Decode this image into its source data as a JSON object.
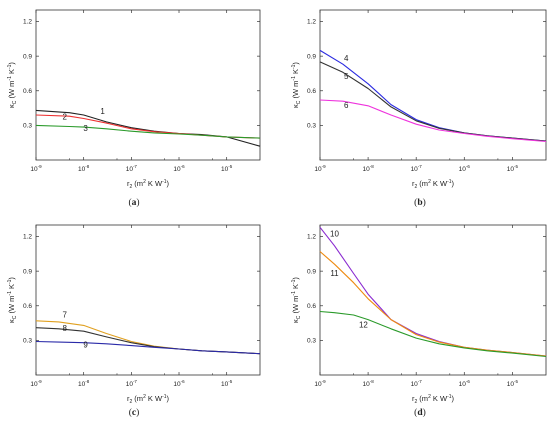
{
  "chart_data": [
    {
      "panel_label": "(a)",
      "type": "line",
      "xscale": "log",
      "xlim": [
        1e-09,
        5e-05
      ],
      "ylim": [
        0,
        1.3
      ],
      "xlabel": {
        "base": "r",
        "sub": "2",
        "units": " (m",
        "sup1": "2",
        "mid": " K W",
        "sup2": "-1",
        "end": ")"
      },
      "ylabel": {
        "base": "κ",
        "sub": "C",
        "units": " (W m",
        "sup1": "-1",
        "mid": " K",
        "sup2": "-1",
        "end": ")"
      },
      "xticks": [
        {
          "v": 1e-09,
          "b": "10",
          "e": "-9"
        },
        {
          "v": 1e-08,
          "b": "10",
          "e": "-8"
        },
        {
          "v": 1e-07,
          "b": "10",
          "e": "-7"
        },
        {
          "v": 1e-06,
          "b": "10",
          "e": "-6"
        },
        {
          "v": 1e-05,
          "b": "10",
          "e": "-5"
        }
      ],
      "yticks": [
        "0.3",
        "0.6",
        "0.9",
        "1.2"
      ],
      "series": [
        {
          "name": "1",
          "color": "#222222",
          "x": [
            1e-09,
            5e-09,
            1e-08,
            3e-08,
            1e-07,
            3e-07,
            1e-06,
            3e-06,
            1e-05,
            5e-05
          ],
          "y": [
            0.43,
            0.41,
            0.39,
            0.33,
            0.28,
            0.25,
            0.23,
            0.22,
            0.2,
            0.12
          ]
        },
        {
          "name": "2",
          "color": "#ee3030",
          "x": [
            1e-09,
            5e-09,
            1e-08,
            3e-08,
            1e-07,
            3e-07,
            1e-06,
            3e-06,
            1e-05,
            5e-05
          ],
          "y": [
            0.39,
            0.38,
            0.36,
            0.32,
            0.27,
            0.245,
            0.23,
            0.215,
            0.2,
            0.19
          ]
        },
        {
          "name": "3",
          "color": "#2a9a2a",
          "x": [
            1e-09,
            5e-09,
            1e-08,
            3e-08,
            1e-07,
            3e-07,
            1e-06,
            3e-06,
            1e-05,
            5e-05
          ],
          "y": [
            0.3,
            0.29,
            0.285,
            0.27,
            0.25,
            0.235,
            0.225,
            0.215,
            0.2,
            0.19
          ]
        }
      ],
      "labels": [
        {
          "text": "1",
          "x": 2.5e-08,
          "y": 0.4
        },
        {
          "text": "2",
          "x": 4e-09,
          "y": 0.35
        },
        {
          "text": "3",
          "x": 1.1e-08,
          "y": 0.25
        }
      ]
    },
    {
      "panel_label": "(b)",
      "type": "line",
      "xscale": "log",
      "xlim": [
        1e-09,
        5e-05
      ],
      "ylim": [
        0,
        1.3
      ],
      "xlabel": {
        "base": "r",
        "sub": "2",
        "units": " (m",
        "sup1": "2",
        "mid": " K W",
        "sup2": "-1",
        "end": ")"
      },
      "ylabel": {
        "base": "κ",
        "sub": "C",
        "units": " (W m",
        "sup1": "-1",
        "mid": " K",
        "sup2": "-1",
        "end": ")"
      },
      "xticks": [
        {
          "v": 1e-09,
          "b": "10",
          "e": "-9"
        },
        {
          "v": 1e-08,
          "b": "10",
          "e": "-8"
        },
        {
          "v": 1e-07,
          "b": "10",
          "e": "-7"
        },
        {
          "v": 1e-06,
          "b": "10",
          "e": "-6"
        },
        {
          "v": 1e-05,
          "b": "10",
          "e": "-5"
        }
      ],
      "yticks": [
        "0.3",
        "0.6",
        "0.9",
        "1.2"
      ],
      "series": [
        {
          "name": "4",
          "color": "#2a2ae0",
          "x": [
            1e-09,
            3e-09,
            1e-08,
            3e-08,
            1e-07,
            3e-07,
            1e-06,
            3e-06,
            1e-05,
            5e-05
          ],
          "y": [
            0.95,
            0.83,
            0.66,
            0.48,
            0.35,
            0.28,
            0.235,
            0.21,
            0.19,
            0.165
          ]
        },
        {
          "name": "5",
          "color": "#333333",
          "x": [
            1e-09,
            3e-09,
            1e-08,
            3e-08,
            1e-07,
            3e-07,
            1e-06,
            3e-06,
            1e-05,
            5e-05
          ],
          "y": [
            0.85,
            0.76,
            0.62,
            0.46,
            0.34,
            0.275,
            0.235,
            0.21,
            0.19,
            0.165
          ]
        },
        {
          "name": "6",
          "color": "#ee33dd",
          "x": [
            1e-09,
            3e-09,
            1e-08,
            3e-08,
            1e-07,
            3e-07,
            1e-06,
            3e-06,
            1e-05,
            5e-05
          ],
          "y": [
            0.52,
            0.51,
            0.47,
            0.39,
            0.31,
            0.26,
            0.23,
            0.205,
            0.185,
            0.16
          ]
        }
      ],
      "labels": [
        {
          "text": "4",
          "x": 3.5e-09,
          "y": 0.86
        },
        {
          "text": "5",
          "x": 3.5e-09,
          "y": 0.7
        },
        {
          "text": "6",
          "x": 3.5e-09,
          "y": 0.45
        }
      ]
    },
    {
      "panel_label": "(c)",
      "type": "line",
      "xscale": "log",
      "xlim": [
        1e-09,
        5e-05
      ],
      "ylim": [
        0,
        1.3
      ],
      "xlabel": {
        "base": "r",
        "sub": "2",
        "units": " (m",
        "sup1": "2",
        "mid": " K W",
        "sup2": "-1",
        "end": ")"
      },
      "ylabel": {
        "base": "κ",
        "sub": "C",
        "units": " (W m",
        "sup1": "-1",
        "mid": " K",
        "sup2": "-1",
        "end": ")"
      },
      "xticks": [
        {
          "v": 1e-09,
          "b": "10",
          "e": "-9"
        },
        {
          "v": 1e-08,
          "b": "10",
          "e": "-8"
        },
        {
          "v": 1e-07,
          "b": "10",
          "e": "-7"
        },
        {
          "v": 1e-06,
          "b": "10",
          "e": "-6"
        },
        {
          "v": 1e-05,
          "b": "10",
          "e": "-5"
        }
      ],
      "yticks": [
        "0.3",
        "0.6",
        "0.9",
        "1.2"
      ],
      "series": [
        {
          "name": "7",
          "color": "#e0a020",
          "x": [
            1e-09,
            3e-09,
            1e-08,
            3e-08,
            1e-07,
            3e-07,
            1e-06,
            3e-06,
            1e-05,
            5e-05
          ],
          "y": [
            0.47,
            0.46,
            0.43,
            0.36,
            0.29,
            0.25,
            0.225,
            0.21,
            0.2,
            0.185
          ]
        },
        {
          "name": "8",
          "color": "#333333",
          "x": [
            1e-09,
            3e-09,
            1e-08,
            3e-08,
            1e-07,
            3e-07,
            1e-06,
            3e-06,
            1e-05,
            5e-05
          ],
          "y": [
            0.41,
            0.4,
            0.38,
            0.33,
            0.28,
            0.245,
            0.225,
            0.21,
            0.2,
            0.185
          ]
        },
        {
          "name": "9",
          "color": "#2a2aa8",
          "x": [
            1e-09,
            3e-09,
            1e-08,
            3e-08,
            1e-07,
            3e-07,
            1e-06,
            3e-06,
            1e-05,
            5e-05
          ],
          "y": [
            0.29,
            0.285,
            0.28,
            0.27,
            0.255,
            0.24,
            0.225,
            0.21,
            0.2,
            0.185
          ]
        }
      ],
      "labels": [
        {
          "text": "7",
          "x": 4e-09,
          "y": 0.5
        },
        {
          "text": "8",
          "x": 4e-09,
          "y": 0.38
        },
        {
          "text": "9",
          "x": 1.1e-08,
          "y": 0.24
        }
      ]
    },
    {
      "panel_label": "(d)",
      "type": "line",
      "xscale": "log",
      "xlim": [
        1e-09,
        5e-05
      ],
      "ylim": [
        0,
        1.3
      ],
      "xlabel": {
        "base": "r",
        "sub": "2",
        "units": " (m",
        "sup1": "2",
        "mid": " K W",
        "sup2": "-1",
        "end": ")"
      },
      "ylabel": {
        "base": "κ",
        "sub": "C",
        "units": " (W m",
        "sup1": "-1",
        "mid": " K",
        "sup2": "-1",
        "end": ")"
      },
      "xticks": [
        {
          "v": 1e-09,
          "b": "10",
          "e": "-9"
        },
        {
          "v": 1e-08,
          "b": "10",
          "e": "-8"
        },
        {
          "v": 1e-07,
          "b": "10",
          "e": "-7"
        },
        {
          "v": 1e-06,
          "b": "10",
          "e": "-6"
        },
        {
          "v": 1e-05,
          "b": "10",
          "e": "-5"
        }
      ],
      "yticks": [
        "0.3",
        "0.6",
        "0.9",
        "1.2"
      ],
      "series": [
        {
          "name": "10",
          "color": "#8a2ad0",
          "x": [
            1e-09,
            2e-09,
            5e-09,
            1e-08,
            3e-08,
            1e-07,
            3e-07,
            1e-06,
            3e-06,
            1e-05,
            5e-05
          ],
          "y": [
            1.28,
            1.12,
            0.88,
            0.7,
            0.48,
            0.36,
            0.29,
            0.24,
            0.215,
            0.195,
            0.165
          ]
        },
        {
          "name": "11",
          "color": "#ee8a10",
          "x": [
            1e-09,
            2e-09,
            5e-09,
            1e-08,
            3e-08,
            1e-07,
            3e-07,
            1e-06,
            3e-06,
            1e-05,
            5e-05
          ],
          "y": [
            1.07,
            0.96,
            0.8,
            0.66,
            0.48,
            0.35,
            0.285,
            0.24,
            0.215,
            0.195,
            0.165
          ]
        },
        {
          "name": "12",
          "color": "#2a9a2a",
          "x": [
            1e-09,
            2e-09,
            5e-09,
            1e-08,
            3e-08,
            1e-07,
            3e-07,
            1e-06,
            3e-06,
            1e-05,
            5e-05
          ],
          "y": [
            0.55,
            0.54,
            0.52,
            0.48,
            0.4,
            0.32,
            0.27,
            0.235,
            0.21,
            0.19,
            0.16
          ]
        }
      ],
      "labels": [
        {
          "text": "10",
          "x": 2e-09,
          "y": 1.2
        },
        {
          "text": "11",
          "x": 2e-09,
          "y": 0.86
        },
        {
          "text": "12",
          "x": 8e-09,
          "y": 0.41
        }
      ]
    }
  ]
}
